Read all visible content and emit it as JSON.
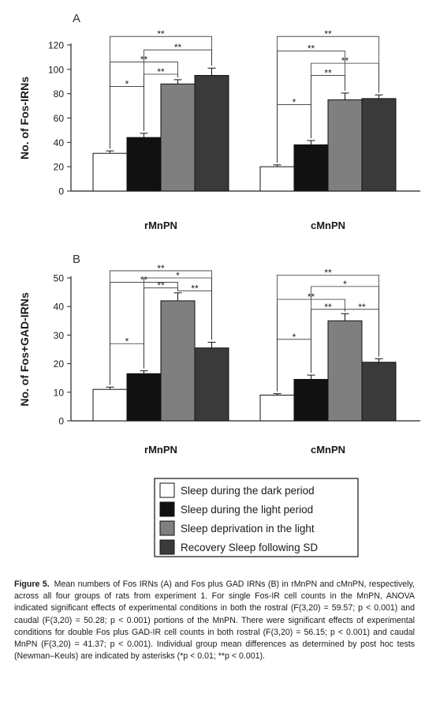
{
  "colors": {
    "dark_period": "#ffffff",
    "light_period": "#111111",
    "deprivation": "#7f7f7f",
    "recovery": "#3a3a3a",
    "axis": "#222222"
  },
  "legend": [
    {
      "label": "Sleep during the dark period",
      "color": "#ffffff"
    },
    {
      "label": "Sleep during the light period",
      "color": "#111111"
    },
    {
      "label": "Sleep deprivation in the light",
      "color": "#7f7f7f"
    },
    {
      "label": "Recovery Sleep following SD",
      "color": "#3a3a3a"
    }
  ],
  "chart_data": [
    {
      "type": "bar",
      "panel_label": "A",
      "ylabel": "No. of Fos-IRNs",
      "xlabel": "",
      "ylim": [
        0,
        120
      ],
      "yticks": [
        0,
        20,
        40,
        60,
        80,
        100,
        120
      ],
      "grid": false,
      "categories": [
        "rMnPN",
        "cMnPN"
      ],
      "series": [
        {
          "name": "Sleep during the dark period",
          "values": [
            31,
            20
          ],
          "errors": [
            2,
            1.5
          ]
        },
        {
          "name": "Sleep during the light period",
          "values": [
            44,
            38
          ],
          "errors": [
            3.5,
            3.5
          ]
        },
        {
          "name": "Sleep deprivation in the light",
          "values": [
            88,
            75
          ],
          "errors": [
            3.5,
            5.5
          ]
        },
        {
          "name": "Recovery Sleep following SD",
          "values": [
            95,
            76
          ],
          "errors": [
            6,
            3
          ]
        }
      ],
      "significance": [
        {
          "category": "rMnPN",
          "from": 0,
          "to": 1,
          "label": "*",
          "level": 86
        },
        {
          "category": "rMnPN",
          "from": 1,
          "to": 2,
          "label": "**",
          "level": 96
        },
        {
          "category": "rMnPN",
          "from": 0,
          "to": 2,
          "label": "**",
          "level": 106
        },
        {
          "category": "rMnPN",
          "from": 1,
          "to": 3,
          "label": "**",
          "level": 116
        },
        {
          "category": "rMnPN",
          "from": 0,
          "to": 3,
          "label": "**",
          "level": 127
        },
        {
          "category": "cMnPN",
          "from": 0,
          "to": 1,
          "label": "*",
          "level": 71
        },
        {
          "category": "cMnPN",
          "from": 1,
          "to": 2,
          "label": "**",
          "level": 95
        },
        {
          "category": "cMnPN",
          "from": 1,
          "to": 3,
          "label": "**",
          "level": 105
        },
        {
          "category": "cMnPN",
          "from": 0,
          "to": 2,
          "label": "**",
          "level": 115
        },
        {
          "category": "cMnPN",
          "from": 0,
          "to": 3,
          "label": "**",
          "level": 127
        }
      ]
    },
    {
      "type": "bar",
      "panel_label": "B",
      "ylabel": "No. of Fos+GAD-IRNs",
      "xlabel": "",
      "ylim": [
        0,
        50
      ],
      "yticks": [
        0,
        10,
        20,
        30,
        40,
        50
      ],
      "grid": false,
      "categories": [
        "rMnPN",
        "cMnPN"
      ],
      "series": [
        {
          "name": "Sleep during the dark period",
          "values": [
            11,
            9
          ],
          "errors": [
            0.8,
            0.5
          ]
        },
        {
          "name": "Sleep during the light period",
          "values": [
            16.5,
            14.5
          ],
          "errors": [
            1,
            1.5
          ]
        },
        {
          "name": "Sleep deprivation in the light",
          "values": [
            42,
            35
          ],
          "errors": [
            2.8,
            2.5
          ]
        },
        {
          "name": "Recovery Sleep following SD",
          "values": [
            25.5,
            20.5
          ],
          "errors": [
            2,
            1.2
          ]
        }
      ],
      "significance": [
        {
          "category": "rMnPN",
          "from": 0,
          "to": 1,
          "label": "*",
          "level": 27
        },
        {
          "category": "rMnPN",
          "from": 2,
          "to": 3,
          "label": "**",
          "level": 45.5
        },
        {
          "category": "rMnPN",
          "from": 1,
          "to": 2,
          "label": "**",
          "level": 46.5
        },
        {
          "category": "rMnPN",
          "from": 0,
          "to": 2,
          "label": "**",
          "level": 48.5
        },
        {
          "category": "rMnPN",
          "from": 1,
          "to": 3,
          "label": "*",
          "level": 50
        },
        {
          "category": "rMnPN",
          "from": 0,
          "to": 3,
          "label": "**",
          "level": 52.5
        },
        {
          "category": "cMnPN",
          "from": 0,
          "to": 1,
          "label": "*",
          "level": 28.5
        },
        {
          "category": "cMnPN",
          "from": 1,
          "to": 2,
          "label": "**",
          "level": 39
        },
        {
          "category": "cMnPN",
          "from": 2,
          "to": 3,
          "label": "**",
          "level": 39
        },
        {
          "category": "cMnPN",
          "from": 0,
          "to": 2,
          "label": "**",
          "level": 42.5
        },
        {
          "category": "cMnPN",
          "from": 1,
          "to": 3,
          "label": "*",
          "level": 47
        },
        {
          "category": "cMnPN",
          "from": 0,
          "to": 3,
          "label": "**",
          "level": 51
        }
      ]
    }
  ],
  "caption": {
    "label": "Figure 5.",
    "text": "Mean numbers of Fos IRNs (A) and Fos plus GAD IRNs (B) in rMnPN and cMnPN, respectively, across all four groups of rats from experiment 1. For single Fos-IR cell counts in the MnPN, ANOVA indicated significant effects of experimental conditions in both the rostral (F(3,20) = 59.57; p < 0.001) and caudal (F(3,20) = 50.28; p < 0.001) portions of the MnPN. There were significant effects of experimental conditions for double Fos plus GAD-IR cell counts in both rostral (F(3,20) = 56.15; p < 0.001) and caudal MnPN (F(3,20) = 41.37; p < 0.001). Individual group mean differences as determined by post hoc tests (Newman–Keuls) are indicated by asterisks (*p < 0.01; **p < 0.001)."
  }
}
